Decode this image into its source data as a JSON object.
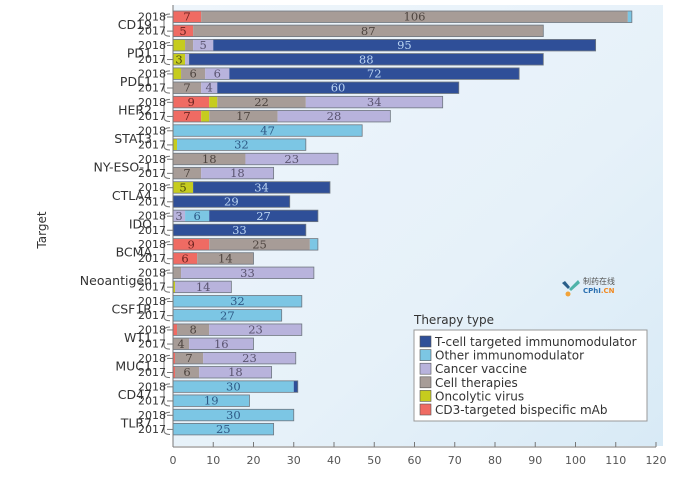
{
  "chart_data": {
    "type": "bar",
    "orientation": "horizontal",
    "stacked": true,
    "title": "",
    "xlabel": "",
    "ylabel": "Target",
    "xlim": [
      0,
      120
    ],
    "xticks": [
      0,
      10,
      20,
      30,
      40,
      50,
      60,
      70,
      80,
      90,
      100,
      110,
      120
    ],
    "grid": false,
    "legend": {
      "title": "Therapy type",
      "placement": "bottom-right",
      "entries": [
        {
          "key": "tcell",
          "label": "T-cell targeted immunomodulator",
          "color": "#2f4f98"
        },
        {
          "key": "other",
          "label": "Other immunomodulator",
          "color": "#7cc6e4"
        },
        {
          "key": "vaccine",
          "label": "Cancer vaccine",
          "color": "#b8b3dc"
        },
        {
          "key": "cell",
          "label": "Cell therapies",
          "color": "#a79c97"
        },
        {
          "key": "oncolytic",
          "label": "Oncolytic virus",
          "color": "#c6cc1e"
        },
        {
          "key": "cd3",
          "label": "CD3-targeted bispecific mAb",
          "color": "#ef6b63"
        }
      ]
    },
    "segment_order": [
      "cd3",
      "oncolytic",
      "cell",
      "vaccine",
      "other",
      "tcell"
    ],
    "categories": [
      {
        "target": "CD19",
        "rows": [
          {
            "year": "2018",
            "segments": {
              "cd3": 7,
              "cell": 106,
              "other": 1
            },
            "labels": {
              "cd3": "7",
              "cell": "106"
            }
          },
          {
            "year": "2017",
            "segments": {
              "cd3": 5,
              "cell": 87
            },
            "labels": {
              "cd3": "5",
              "cell": "87"
            }
          }
        ]
      },
      {
        "target": "PD1",
        "rows": [
          {
            "year": "2018",
            "segments": {
              "oncolytic": 3,
              "cell": 2,
              "vaccine": 5,
              "tcell": 95
            },
            "labels": {
              "vaccine": "5",
              "tcell": "95"
            }
          },
          {
            "year": "2017",
            "segments": {
              "oncolytic": 3,
              "vaccine": 1,
              "tcell": 88
            },
            "labels": {
              "oncolytic": "3",
              "tcell": "88"
            }
          }
        ]
      },
      {
        "target": "PDL1",
        "rows": [
          {
            "year": "2018",
            "segments": {
              "oncolytic": 2,
              "cell": 6,
              "vaccine": 6,
              "tcell": 72
            },
            "labels": {
              "cell": "6",
              "vaccine": "6",
              "tcell": "72"
            }
          },
          {
            "year": "2017",
            "segments": {
              "cell": 7,
              "vaccine": 4,
              "tcell": 60
            },
            "labels": {
              "cell": "7",
              "vaccine": "4",
              "tcell": "60"
            }
          }
        ]
      },
      {
        "target": "HER2",
        "rows": [
          {
            "year": "2018",
            "segments": {
              "cd3": 9,
              "oncolytic": 2,
              "cell": 22,
              "vaccine": 34
            },
            "labels": {
              "cd3": "9",
              "cell": "22",
              "vaccine": "34"
            }
          },
          {
            "year": "2017",
            "segments": {
              "cd3": 7,
              "oncolytic": 2,
              "cell": 17,
              "vaccine": 28
            },
            "labels": {
              "cd3": "7",
              "cell": "17",
              "vaccine": "28"
            }
          }
        ]
      },
      {
        "target": "STAT3",
        "rows": [
          {
            "year": "2018",
            "segments": {
              "other": 47
            },
            "labels": {
              "other": "47"
            }
          },
          {
            "year": "2017",
            "segments": {
              "oncolytic": 1,
              "other": 32
            },
            "labels": {
              "other": "32"
            }
          }
        ]
      },
      {
        "target": "NY-ESO-1",
        "rows": [
          {
            "year": "2018",
            "segments": {
              "cell": 18,
              "vaccine": 23
            },
            "labels": {
              "cell": "18",
              "vaccine": "23"
            }
          },
          {
            "year": "2017",
            "segments": {
              "cell": 7,
              "vaccine": 18
            },
            "labels": {
              "cell": "7",
              "vaccine": "18"
            }
          }
        ]
      },
      {
        "target": "CTLA4",
        "rows": [
          {
            "year": "2018",
            "segments": {
              "oncolytic": 5,
              "tcell": 34
            },
            "labels": {
              "oncolytic": "5",
              "tcell": "34"
            }
          },
          {
            "year": "2017",
            "segments": {
              "tcell": 29
            },
            "labels": {
              "tcell": "29"
            }
          }
        ]
      },
      {
        "target": "IDO",
        "rows": [
          {
            "year": "2018",
            "segments": {
              "vaccine": 3,
              "other": 6,
              "tcell": 27
            },
            "labels": {
              "vaccine": "3",
              "other": "6",
              "tcell": "27"
            }
          },
          {
            "year": "2017",
            "segments": {
              "tcell": 33
            },
            "labels": {
              "tcell": "33"
            }
          }
        ]
      },
      {
        "target": "BCMA",
        "rows": [
          {
            "year": "2018",
            "segments": {
              "cd3": 9,
              "cell": 25,
              "other": 2
            },
            "labels": {
              "cd3": "9",
              "cell": "25"
            }
          },
          {
            "year": "2017",
            "segments": {
              "cd3": 6,
              "cell": 14
            },
            "labels": {
              "cd3": "6",
              "cell": "14"
            }
          }
        ]
      },
      {
        "target": "Neoantigen",
        "rows": [
          {
            "year": "2018",
            "segments": {
              "cell": 2,
              "vaccine": 33
            },
            "labels": {
              "vaccine": "33"
            }
          },
          {
            "year": "2017",
            "segments": {
              "oncolytic": 0.5,
              "vaccine": 14
            },
            "labels": {
              "vaccine": "14"
            }
          }
        ]
      },
      {
        "target": "CSF1R",
        "rows": [
          {
            "year": "2018",
            "segments": {
              "other": 32
            },
            "labels": {
              "other": "32"
            }
          },
          {
            "year": "2017",
            "segments": {
              "other": 27
            },
            "labels": {
              "other": "27"
            }
          }
        ]
      },
      {
        "target": "WT1",
        "rows": [
          {
            "year": "2018",
            "segments": {
              "cd3": 1,
              "cell": 8,
              "vaccine": 23
            },
            "labels": {
              "cell": "8",
              "vaccine": "23"
            }
          },
          {
            "year": "2017",
            "segments": {
              "cell": 4,
              "vaccine": 16
            },
            "labels": {
              "cell": "4",
              "vaccine": "16"
            }
          }
        ]
      },
      {
        "target": "MUC1",
        "rows": [
          {
            "year": "2018",
            "segments": {
              "cd3": 0.5,
              "cell": 7,
              "vaccine": 23
            },
            "labels": {
              "cell": "7",
              "vaccine": "23"
            }
          },
          {
            "year": "2017",
            "segments": {
              "cd3": 0.5,
              "cell": 6,
              "vaccine": 18
            },
            "labels": {
              "cell": "6",
              "vaccine": "18"
            }
          }
        ]
      },
      {
        "target": "CD47",
        "rows": [
          {
            "year": "2018",
            "segments": {
              "other": 30,
              "tcell": 1
            },
            "labels": {
              "other": "30"
            }
          },
          {
            "year": "2017",
            "segments": {
              "other": 19
            },
            "labels": {
              "other": "19"
            }
          }
        ]
      },
      {
        "target": "TLR7",
        "rows": [
          {
            "year": "2018",
            "segments": {
              "other": 30
            },
            "labels": {
              "other": "30"
            }
          },
          {
            "year": "2017",
            "segments": {
              "other": 25
            },
            "labels": {
              "other": "25"
            }
          }
        ]
      }
    ]
  },
  "watermark": {
    "text_cn": "制药在线",
    "text_en_a": "CPhI",
    "text_en_b": ".CN"
  }
}
